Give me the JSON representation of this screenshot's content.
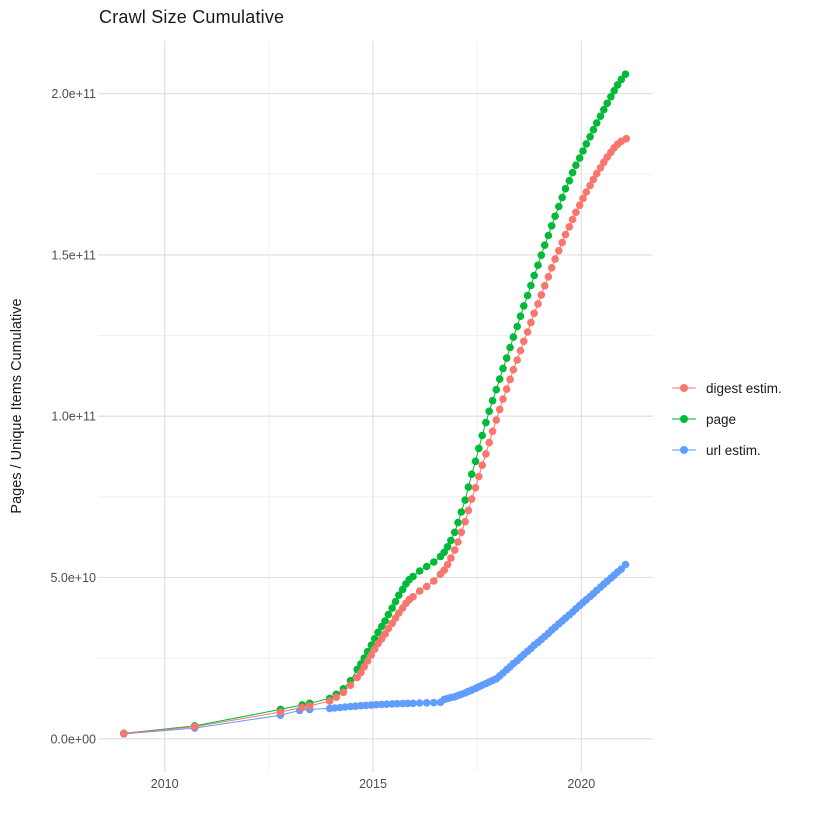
{
  "title": "Crawl Size Cumulative",
  "axes": {
    "y_label": "Pages / Unique Items Cumulative",
    "y_ticks": [
      {
        "label": "0.0e+00",
        "value": 0
      },
      {
        "label": "5.0e+10",
        "value": 50
      },
      {
        "label": "1.0e+11",
        "value": 100
      },
      {
        "label": "1.5e+11",
        "value": 150
      },
      {
        "label": "2.0e+11",
        "value": 200
      }
    ],
    "x_ticks": [
      {
        "label": "2010",
        "value": 2010
      },
      {
        "label": "2015",
        "value": 2015
      },
      {
        "label": "2020",
        "value": 2020
      }
    ]
  },
  "legend": {
    "items": [
      {
        "label": "digest estim.",
        "color": "#F8766D"
      },
      {
        "label": "page",
        "color": "#00BA38"
      },
      {
        "label": "url estim.",
        "color": "#619CFF"
      }
    ]
  },
  "colors": {
    "digest": "#F8766D",
    "page": "#00BA38",
    "url": "#619CFF",
    "grid_major": "#E2E2E2",
    "grid_minor": "#EFEFEF",
    "tick_text": "#4d4d4d",
    "title_text": "#1a1a1a"
  },
  "chart_data": {
    "type": "line",
    "title": "Crawl Size Cumulative",
    "xlabel": "",
    "ylabel": "Pages / Unique Items Cumulative",
    "value_unit": "billions (1e9) of pages / unique items",
    "xlim": [
      2008.4,
      2021.72
    ],
    "ylim_billions": [
      -10.3,
      216.3
    ],
    "grid": {
      "major_x": [
        2010,
        2015,
        2020
      ],
      "minor_x": [
        2012.5,
        2017.5
      ],
      "major_y_billions": [
        0,
        50,
        100,
        150,
        200
      ],
      "minor_y_billions": [
        25,
        75,
        125,
        175
      ],
      "legend_position": "right"
    },
    "series": [
      {
        "name": "digest estim.",
        "color": "#F8766D",
        "points": [
          [
            2009.02,
            1.6
          ],
          [
            2010.72,
            3.7
          ],
          [
            2012.78,
            8.3
          ],
          [
            2013.3,
            9.7
          ],
          [
            2013.48,
            10.2
          ],
          [
            2013.96,
            11.7
          ],
          [
            2014.12,
            12.9
          ],
          [
            2014.29,
            14.4
          ],
          [
            2014.46,
            16.6
          ],
          [
            2014.62,
            19.0
          ],
          [
            2014.71,
            20.5
          ],
          [
            2014.79,
            22.3
          ],
          [
            2014.87,
            24.1
          ],
          [
            2014.96,
            26.0
          ],
          [
            2015.04,
            27.8
          ],
          [
            2015.12,
            29.5
          ],
          [
            2015.21,
            31.0
          ],
          [
            2015.29,
            32.5
          ],
          [
            2015.37,
            34.2
          ],
          [
            2015.46,
            35.8
          ],
          [
            2015.54,
            37.4
          ],
          [
            2015.62,
            39.0
          ],
          [
            2015.71,
            40.5
          ],
          [
            2015.79,
            42.0
          ],
          [
            2015.87,
            43.1
          ],
          [
            2015.96,
            44.0
          ],
          [
            2016.12,
            45.8
          ],
          [
            2016.29,
            47.2
          ],
          [
            2016.46,
            48.9
          ],
          [
            2016.62,
            51.0
          ],
          [
            2016.71,
            52.3
          ],
          [
            2016.79,
            54.0
          ],
          [
            2016.87,
            56.0
          ],
          [
            2016.96,
            58.5
          ],
          [
            2017.04,
            61.0
          ],
          [
            2017.12,
            64.0
          ],
          [
            2017.21,
            67.3
          ],
          [
            2017.29,
            70.8
          ],
          [
            2017.37,
            74.3
          ],
          [
            2017.46,
            77.8
          ],
          [
            2017.54,
            81.3
          ],
          [
            2017.62,
            84.8
          ],
          [
            2017.71,
            88.3
          ],
          [
            2017.79,
            91.8
          ],
          [
            2017.87,
            95.3
          ],
          [
            2017.96,
            98.8
          ],
          [
            2018.04,
            102.1
          ],
          [
            2018.12,
            105.3
          ],
          [
            2018.21,
            108.4
          ],
          [
            2018.29,
            111.4
          ],
          [
            2018.37,
            114.4
          ],
          [
            2018.46,
            117.4
          ],
          [
            2018.54,
            120.3
          ],
          [
            2018.62,
            123.2
          ],
          [
            2018.71,
            126.1
          ],
          [
            2018.79,
            129.0
          ],
          [
            2018.87,
            131.9
          ],
          [
            2018.96,
            134.8
          ],
          [
            2019.04,
            137.6
          ],
          [
            2019.12,
            140.4
          ],
          [
            2019.21,
            143.2
          ],
          [
            2019.29,
            146.0
          ],
          [
            2019.37,
            148.7
          ],
          [
            2019.46,
            151.3
          ],
          [
            2019.54,
            153.8
          ],
          [
            2019.62,
            156.3
          ],
          [
            2019.71,
            158.7
          ],
          [
            2019.79,
            161.0
          ],
          [
            2019.87,
            163.2
          ],
          [
            2019.96,
            165.4
          ],
          [
            2020.04,
            167.5
          ],
          [
            2020.12,
            169.5
          ],
          [
            2020.21,
            171.5
          ],
          [
            2020.29,
            173.4
          ],
          [
            2020.37,
            175.2
          ],
          [
            2020.46,
            177.0
          ],
          [
            2020.54,
            178.7
          ],
          [
            2020.62,
            180.3
          ],
          [
            2020.71,
            181.8
          ],
          [
            2020.79,
            183.2
          ],
          [
            2020.87,
            184.3
          ],
          [
            2020.96,
            185.2
          ],
          [
            2021.08,
            186.0
          ]
        ]
      },
      {
        "name": "page",
        "color": "#00BA38",
        "points": [
          [
            2009.02,
            1.7
          ],
          [
            2010.72,
            4.0
          ],
          [
            2012.78,
            9.1
          ],
          [
            2013.3,
            10.5
          ],
          [
            2013.48,
            11.0
          ],
          [
            2013.96,
            12.5
          ],
          [
            2014.12,
            13.8
          ],
          [
            2014.29,
            15.5
          ],
          [
            2014.46,
            18.0
          ],
          [
            2014.62,
            21.5
          ],
          [
            2014.71,
            23.2
          ],
          [
            2014.79,
            25.0
          ],
          [
            2014.87,
            27.0
          ],
          [
            2014.96,
            29.0
          ],
          [
            2015.04,
            31.0
          ],
          [
            2015.12,
            33.0
          ],
          [
            2015.21,
            34.8
          ],
          [
            2015.29,
            36.5
          ],
          [
            2015.37,
            38.5
          ],
          [
            2015.46,
            40.5
          ],
          [
            2015.54,
            42.5
          ],
          [
            2015.62,
            44.5
          ],
          [
            2015.71,
            46.3
          ],
          [
            2015.79,
            48.0
          ],
          [
            2015.87,
            49.3
          ],
          [
            2015.96,
            50.3
          ],
          [
            2016.12,
            52.0
          ],
          [
            2016.29,
            53.4
          ],
          [
            2016.46,
            54.8
          ],
          [
            2016.62,
            56.5
          ],
          [
            2016.71,
            57.8
          ],
          [
            2016.79,
            59.5
          ],
          [
            2016.87,
            61.5
          ],
          [
            2016.96,
            64.0
          ],
          [
            2017.04,
            67.0
          ],
          [
            2017.12,
            70.3
          ],
          [
            2017.21,
            74.0
          ],
          [
            2017.29,
            78.0
          ],
          [
            2017.37,
            82.0
          ],
          [
            2017.46,
            86.0
          ],
          [
            2017.54,
            90.0
          ],
          [
            2017.62,
            94.0
          ],
          [
            2017.71,
            98.0
          ],
          [
            2017.79,
            101.5
          ],
          [
            2017.87,
            104.8
          ],
          [
            2017.96,
            108.2
          ],
          [
            2018.04,
            111.5
          ],
          [
            2018.12,
            114.8
          ],
          [
            2018.21,
            118.0
          ],
          [
            2018.29,
            121.3
          ],
          [
            2018.37,
            124.5
          ],
          [
            2018.46,
            127.8
          ],
          [
            2018.54,
            131.0
          ],
          [
            2018.62,
            134.2
          ],
          [
            2018.71,
            137.4
          ],
          [
            2018.79,
            140.5
          ],
          [
            2018.87,
            143.6
          ],
          [
            2018.96,
            146.8
          ],
          [
            2019.04,
            149.9
          ],
          [
            2019.12,
            153.0
          ],
          [
            2019.21,
            156.0
          ],
          [
            2019.29,
            159.0
          ],
          [
            2019.37,
            162.0
          ],
          [
            2019.46,
            165.0
          ],
          [
            2019.54,
            167.8
          ],
          [
            2019.62,
            170.5
          ],
          [
            2019.71,
            173.0
          ],
          [
            2019.79,
            175.5
          ],
          [
            2019.87,
            177.8
          ],
          [
            2019.96,
            180.0
          ],
          [
            2020.04,
            182.2
          ],
          [
            2020.12,
            184.4
          ],
          [
            2020.21,
            186.6
          ],
          [
            2020.29,
            188.8
          ],
          [
            2020.37,
            190.9
          ],
          [
            2020.46,
            193.0
          ],
          [
            2020.54,
            195.0
          ],
          [
            2020.62,
            197.0
          ],
          [
            2020.71,
            199.0
          ],
          [
            2020.79,
            200.9
          ],
          [
            2020.87,
            202.7
          ],
          [
            2020.96,
            204.4
          ],
          [
            2021.06,
            206.0
          ]
        ]
      },
      {
        "name": "url estim.",
        "color": "#619CFF",
        "points": [
          [
            2009.02,
            1.5
          ],
          [
            2010.72,
            3.3
          ],
          [
            2012.78,
            7.3
          ],
          [
            2013.24,
            8.8
          ],
          [
            2013.48,
            9.1
          ],
          [
            2013.96,
            9.4
          ],
          [
            2014.08,
            9.55
          ],
          [
            2014.21,
            9.7
          ],
          [
            2014.33,
            9.85
          ],
          [
            2014.46,
            10.0
          ],
          [
            2014.58,
            10.1
          ],
          [
            2014.71,
            10.25
          ],
          [
            2014.83,
            10.35
          ],
          [
            2014.96,
            10.45
          ],
          [
            2015.08,
            10.55
          ],
          [
            2015.21,
            10.65
          ],
          [
            2015.33,
            10.72
          ],
          [
            2015.46,
            10.8
          ],
          [
            2015.58,
            10.87
          ],
          [
            2015.71,
            10.92
          ],
          [
            2015.83,
            10.97
          ],
          [
            2015.96,
            11.0
          ],
          [
            2016.12,
            11.1
          ],
          [
            2016.29,
            11.15
          ],
          [
            2016.46,
            11.2
          ],
          [
            2016.62,
            11.3
          ],
          [
            2016.71,
            12.2
          ],
          [
            2016.79,
            12.5
          ],
          [
            2016.87,
            12.75
          ],
          [
            2016.96,
            13.0
          ],
          [
            2017.04,
            13.4
          ],
          [
            2017.12,
            13.8
          ],
          [
            2017.21,
            14.2
          ],
          [
            2017.29,
            14.7
          ],
          [
            2017.37,
            15.1
          ],
          [
            2017.46,
            15.6
          ],
          [
            2017.54,
            16.1
          ],
          [
            2017.62,
            16.6
          ],
          [
            2017.71,
            17.1
          ],
          [
            2017.79,
            17.6
          ],
          [
            2017.87,
            18.1
          ],
          [
            2017.96,
            18.6
          ],
          [
            2018.04,
            19.5
          ],
          [
            2018.12,
            20.4
          ],
          [
            2018.21,
            21.4
          ],
          [
            2018.29,
            22.3
          ],
          [
            2018.37,
            23.3
          ],
          [
            2018.46,
            24.2
          ],
          [
            2018.54,
            25.2
          ],
          [
            2018.62,
            26.1
          ],
          [
            2018.71,
            27.1
          ],
          [
            2018.79,
            28.0
          ],
          [
            2018.87,
            29.0
          ],
          [
            2018.96,
            29.9
          ],
          [
            2019.04,
            30.8
          ],
          [
            2019.12,
            31.7
          ],
          [
            2019.21,
            32.7
          ],
          [
            2019.29,
            33.7
          ],
          [
            2019.37,
            34.6
          ],
          [
            2019.46,
            35.6
          ],
          [
            2019.54,
            36.5
          ],
          [
            2019.62,
            37.4
          ],
          [
            2019.71,
            38.4
          ],
          [
            2019.79,
            39.3
          ],
          [
            2019.87,
            40.3
          ],
          [
            2019.96,
            41.3
          ],
          [
            2020.04,
            42.2
          ],
          [
            2020.12,
            43.1
          ],
          [
            2020.21,
            44.1
          ],
          [
            2020.29,
            45.0
          ],
          [
            2020.37,
            46.0
          ],
          [
            2020.46,
            47.0
          ],
          [
            2020.54,
            47.9
          ],
          [
            2020.62,
            48.8
          ],
          [
            2020.71,
            49.8
          ],
          [
            2020.79,
            50.7
          ],
          [
            2020.87,
            51.7
          ],
          [
            2020.96,
            52.6
          ],
          [
            2021.06,
            54.0
          ]
        ]
      }
    ]
  }
}
